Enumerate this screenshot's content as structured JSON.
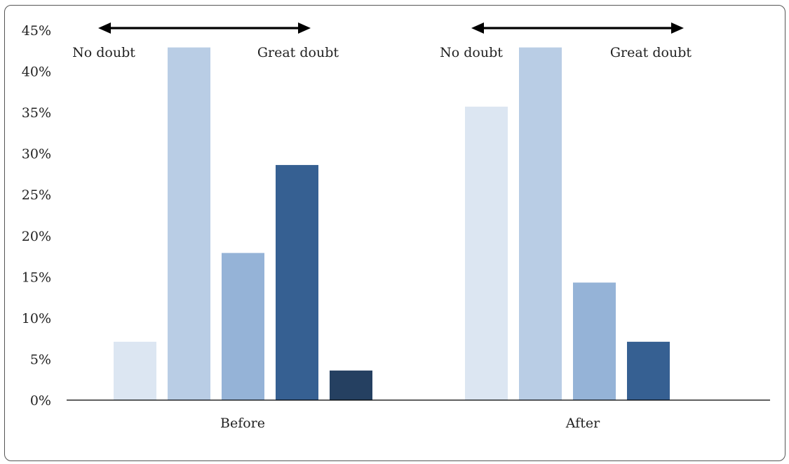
{
  "chart_data": {
    "type": "bar",
    "categories": [
      "Before",
      "After"
    ],
    "series": [
      {
        "values": [
          7.1,
          35.7
        ],
        "color": "#dce6f2"
      },
      {
        "values": [
          42.9,
          42.9
        ],
        "color": "#b9cde5"
      },
      {
        "values": [
          17.9,
          14.3
        ],
        "color": "#95b3d7"
      },
      {
        "values": [
          28.6,
          7.1
        ],
        "color": "#366092"
      },
      {
        "values": [
          3.6,
          0
        ],
        "color": "#254061"
      }
    ],
    "ylim": [
      0,
      45
    ],
    "yticks": [
      0,
      5,
      10,
      15,
      20,
      25,
      30,
      35,
      40,
      45
    ],
    "y_tick_labels": [
      "0%",
      "5%",
      "10%",
      "15%",
      "20%",
      "25%",
      "30%",
      "35%",
      "40%",
      "45%"
    ],
    "grid": false,
    "legend": "none",
    "annotations": [
      {
        "group": "Before",
        "left": "No doubt",
        "right": "Great doubt",
        "arrow": "double-headed"
      },
      {
        "group": "After",
        "left": "No doubt",
        "right": "Great doubt",
        "arrow": "double-headed"
      }
    ],
    "axis_color": "#000000"
  }
}
